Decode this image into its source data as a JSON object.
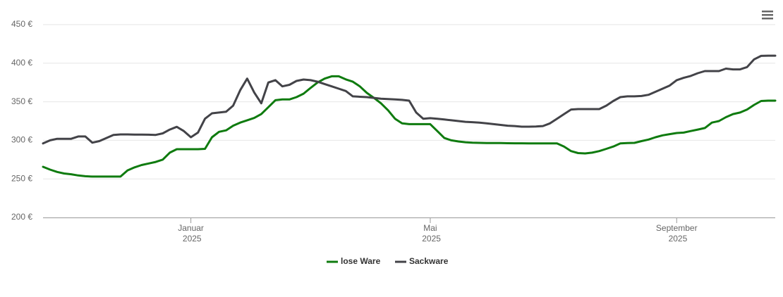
{
  "chart_data": {
    "type": "line",
    "categories": [
      null,
      null,
      null,
      null,
      null,
      null,
      null,
      null,
      null,
      null,
      null,
      null,
      null,
      null,
      null,
      null,
      null,
      null,
      null,
      null,
      null,
      "Januar 2025",
      null,
      null,
      null,
      null,
      null,
      null,
      null,
      null,
      null,
      null,
      null,
      null,
      null,
      null,
      null,
      null,
      null,
      null,
      null,
      null,
      null,
      null,
      null,
      null,
      null,
      null,
      null,
      null,
      null,
      null,
      null,
      null,
      null,
      "Mai 2025",
      null,
      null,
      null,
      null,
      null,
      null,
      null,
      null,
      null,
      null,
      null,
      null,
      null,
      null,
      null,
      null,
      null,
      null,
      null,
      null,
      null,
      null,
      null,
      null,
      null,
      null,
      null,
      null,
      null,
      null,
      null,
      null,
      null,
      null,
      "September 2025",
      null,
      null,
      null,
      null,
      null,
      null,
      null,
      null,
      null,
      null,
      null,
      null,
      null,
      null
    ],
    "series": [
      {
        "name": "lose Ware",
        "color": "#0f7b0f",
        "values": [
          265.7,
          262,
          259,
          257,
          256,
          254.5,
          253.5,
          253,
          253,
          253,
          253,
          253,
          261,
          265,
          268,
          270,
          272,
          275,
          284,
          288.5,
          288.5,
          288.5,
          288.5,
          289,
          304,
          311,
          313,
          319,
          323,
          326,
          329,
          334,
          343,
          352,
          353,
          353,
          356,
          360.5,
          368,
          375,
          380,
          383,
          383,
          379,
          376,
          370,
          361.5,
          355,
          348,
          339,
          328,
          322,
          321,
          321,
          321,
          321,
          312,
          303,
          300,
          298.5,
          297.5,
          297,
          296.7,
          296.5,
          296.5,
          296.5,
          296.3,
          296.2,
          296.2,
          296.1,
          296,
          296,
          296,
          296,
          292,
          286,
          283.5,
          283,
          284,
          286,
          289,
          292,
          296,
          296.5,
          296.7,
          299,
          301,
          304,
          306.5,
          308,
          309.5,
          310,
          312,
          314,
          316,
          323,
          325,
          330,
          334,
          336,
          340,
          346,
          351,
          351.5,
          351.5
        ]
      },
      {
        "name": "Sackware",
        "color": "#434348",
        "values": [
          296,
          300,
          302,
          302,
          302,
          305,
          305,
          297,
          299,
          303,
          307,
          307.7,
          307.7,
          307.5,
          307.5,
          307.3,
          307,
          309,
          314,
          317.5,
          312,
          304,
          310,
          328,
          335,
          336,
          337,
          345,
          365,
          380,
          362,
          348,
          375,
          378,
          370,
          372,
          377,
          378.8,
          378,
          376,
          373,
          370,
          367,
          364,
          357,
          356.5,
          356,
          355,
          354,
          353.5,
          353,
          352.5,
          351.5,
          336,
          328,
          328.7,
          328,
          327,
          326,
          325,
          324,
          323.5,
          323,
          322,
          321,
          320,
          319,
          318.5,
          317.7,
          317.7,
          318,
          318.5,
          322,
          328,
          334,
          340,
          340.5,
          340.5,
          340.5,
          340.5,
          345,
          351,
          356,
          357,
          357,
          357.5,
          359,
          363,
          367,
          371,
          378,
          381,
          383.5,
          387,
          389.8,
          389.8,
          389.8,
          393,
          392,
          392,
          395,
          405,
          409.5,
          409.8,
          409.8
        ]
      }
    ],
    "ylim": [
      200,
      450
    ],
    "yticks": [
      {
        "value": 200,
        "label": "200 €"
      },
      {
        "value": 250,
        "label": "250 €"
      },
      {
        "value": 300,
        "label": "300 €"
      },
      {
        "value": 350,
        "label": "350 €"
      },
      {
        "value": 400,
        "label": "400 €"
      },
      {
        "value": 450,
        "label": "450 €"
      }
    ],
    "grid": true
  }
}
